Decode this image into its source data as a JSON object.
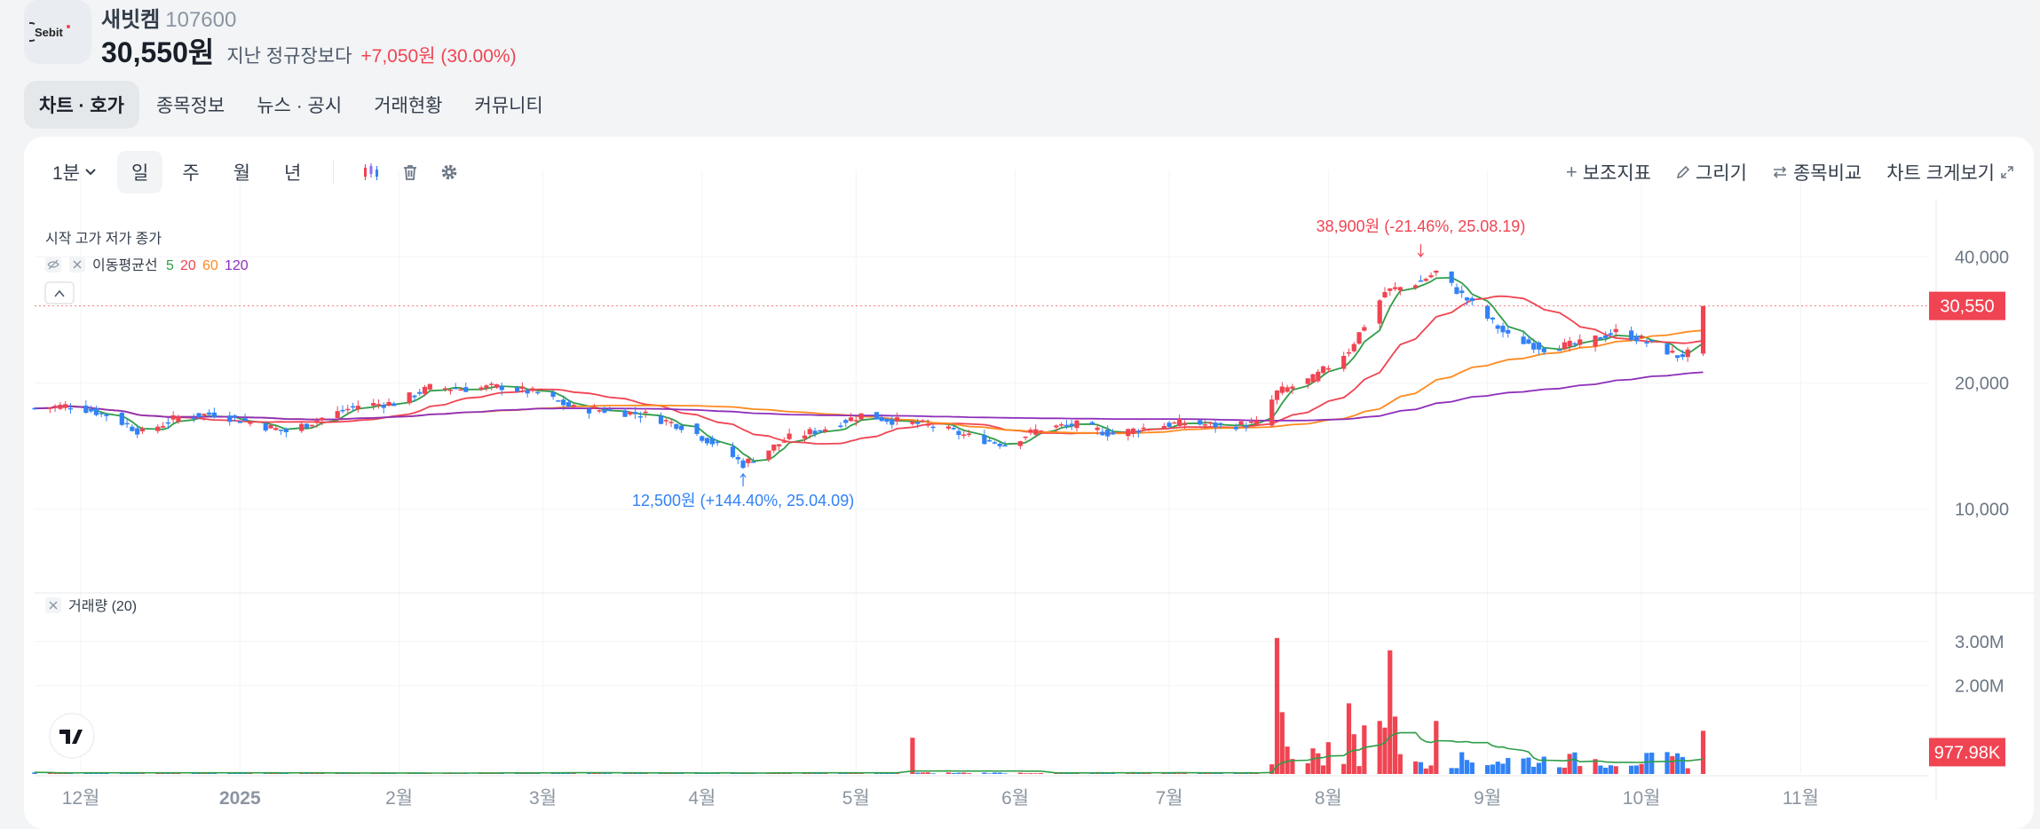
{
  "stock": {
    "logo_text": "Sebit",
    "name": "새빗켐",
    "code": "107600",
    "price": "30,550원",
    "compare_label": "지난 정규장보다",
    "change": "+7,050원 (30.00%)"
  },
  "tabs": [
    {
      "label": "차트 · 호가",
      "active": true
    },
    {
      "label": "종목정보",
      "active": false
    },
    {
      "label": "뉴스 · 공시",
      "active": false
    },
    {
      "label": "거래현황",
      "active": false
    },
    {
      "label": "커뮤니티",
      "active": false
    }
  ],
  "toolbar": {
    "interval": "1분",
    "periods": [
      {
        "label": "일",
        "active": true
      },
      {
        "label": "주",
        "active": false
      },
      {
        "label": "월",
        "active": false
      },
      {
        "label": "년",
        "active": false
      }
    ],
    "icons": [
      "candle-type-icon",
      "trash-icon",
      "settings-gear-icon"
    ],
    "right_buttons": [
      {
        "label": "보조지표",
        "icon": "plus-icon"
      },
      {
        "label": "그리기",
        "icon": "pencil-icon"
      },
      {
        "label": "종목비교",
        "icon": "swap-arrows-icon"
      },
      {
        "label": "차트 크게보기",
        "icon": "expand-icon"
      }
    ]
  },
  "legend": {
    "ohlc_label": "시작 고가 저가 종가",
    "ma_label": "이동평균선",
    "ma_periods": [
      {
        "label": "5",
        "color": "#2e9e48"
      },
      {
        "label": "20",
        "color": "#f04452"
      },
      {
        "label": "60",
        "color": "#ff8a1f"
      },
      {
        "label": "120",
        "color": "#8e2fba"
      }
    ],
    "volume_label": "거래량 (20)"
  },
  "colors": {
    "up": "#f04452",
    "down": "#3182f6",
    "ma5": "#2e9e48",
    "ma20": "#f04452",
    "ma60": "#ff8a1f",
    "ma120": "#8e2fba",
    "current_price_tag": "#f04452"
  },
  "chart_data": {
    "type": "candlestick",
    "price_axis": {
      "ticks": [
        "40,000",
        "20,000",
        "10,000"
      ],
      "tick_values": [
        40000,
        20000,
        10000
      ],
      "scale": "log",
      "range": [
        6500,
        48000
      ]
    },
    "volume_axis": {
      "ticks": [
        "3.00M",
        "2.00M"
      ],
      "tick_values": [
        3000000,
        2000000
      ],
      "range": [
        0,
        4000000
      ]
    },
    "x_labels": [
      {
        "label": "12월",
        "date": "2024-12-01",
        "bold": false
      },
      {
        "label": "2025",
        "date": "2025-01-01",
        "bold": true
      },
      {
        "label": "2월",
        "date": "2025-02-01",
        "bold": false
      },
      {
        "label": "3월",
        "date": "2025-03-01",
        "bold": false
      },
      {
        "label": "4월",
        "date": "2025-04-01",
        "bold": false
      },
      {
        "label": "5월",
        "date": "2025-05-01",
        "bold": false
      },
      {
        "label": "6월",
        "date": "2025-06-01",
        "bold": false
      },
      {
        "label": "7월",
        "date": "2025-07-01",
        "bold": false
      },
      {
        "label": "8월",
        "date": "2025-08-01",
        "bold": false
      },
      {
        "label": "9월",
        "date": "2025-09-01",
        "bold": false
      },
      {
        "label": "10월",
        "date": "2025-10-01",
        "bold": false
      },
      {
        "label": "11월",
        "date": "2025-11-01",
        "bold": false
      }
    ],
    "date_range": [
      "2024-11-22",
      "2025-11-26"
    ],
    "closes": [
      [
        "2024-11-22",
        17400
      ],
      [
        "2024-11-29",
        17700
      ],
      [
        "2024-12-06",
        16800
      ],
      [
        "2024-12-13",
        15200
      ],
      [
        "2024-12-20",
        16600
      ],
      [
        "2024-12-27",
        16900
      ],
      [
        "2025-01-03",
        16100
      ],
      [
        "2025-01-10",
        15300
      ],
      [
        "2025-01-17",
        16500
      ],
      [
        "2025-01-24",
        17700
      ],
      [
        "2025-01-31",
        17900
      ],
      [
        "2025-02-07",
        19500
      ],
      [
        "2025-02-14",
        19400
      ],
      [
        "2025-02-21",
        19600
      ],
      [
        "2025-02-28",
        18900
      ],
      [
        "2025-03-07",
        17400
      ],
      [
        "2025-03-14",
        17200
      ],
      [
        "2025-03-21",
        16800
      ],
      [
        "2025-03-28",
        15800
      ],
      [
        "2025-04-04",
        14200
      ],
      [
        "2025-04-09",
        12800
      ],
      [
        "2025-04-18",
        14800
      ],
      [
        "2025-04-25",
        15600
      ],
      [
        "2025-05-02",
        16800
      ],
      [
        "2025-05-09",
        16200
      ],
      [
        "2025-05-16",
        15800
      ],
      [
        "2025-05-23",
        14900
      ],
      [
        "2025-05-30",
        14300
      ],
      [
        "2025-06-06",
        15600
      ],
      [
        "2025-06-13",
        15900
      ],
      [
        "2025-06-20",
        15100
      ],
      [
        "2025-06-27",
        15700
      ],
      [
        "2025-07-04",
        16100
      ],
      [
        "2025-07-11",
        15800
      ],
      [
        "2025-07-18",
        16000
      ],
      [
        "2025-07-22",
        19000
      ],
      [
        "2025-07-29",
        20500
      ],
      [
        "2025-08-05",
        24000
      ],
      [
        "2025-08-12",
        33000
      ],
      [
        "2025-08-19",
        35000
      ],
      [
        "2025-08-22",
        36800
      ],
      [
        "2025-08-29",
        30800
      ],
      [
        "2025-09-05",
        25800
      ],
      [
        "2025-09-12",
        24200
      ],
      [
        "2025-09-19",
        24800
      ],
      [
        "2025-09-26",
        26500
      ],
      [
        "2025-10-01",
        25400
      ],
      [
        "2025-10-08",
        23200
      ],
      [
        "2025-10-10",
        23500
      ],
      [
        "2025-10-13",
        30550
      ]
    ],
    "annotations": [
      {
        "text": "38,900원 (-21.46%, 25.08.19)",
        "date": "2025-08-19",
        "price": 38900,
        "color": "#f04452",
        "kind": "high"
      },
      {
        "text": "12,500원 (+144.40%, 25.04.09)",
        "date": "2025-04-09",
        "price": 12500,
        "color": "#3182f6",
        "kind": "low"
      }
    ],
    "current_price": {
      "label": "30,550",
      "value": 30550
    },
    "current_volume": {
      "label": "977.98K",
      "value": 977980
    },
    "volume_spikes": [
      [
        "2025-05-12",
        820000
      ],
      [
        "2025-07-22",
        3080000
      ],
      [
        "2025-07-23",
        1400000
      ],
      [
        "2025-07-24",
        620000
      ],
      [
        "2025-07-29",
        580000
      ],
      [
        "2025-08-01",
        720000
      ],
      [
        "2025-08-05",
        1600000
      ],
      [
        "2025-08-06",
        900000
      ],
      [
        "2025-08-08",
        1100000
      ],
      [
        "2025-08-11",
        1200000
      ],
      [
        "2025-08-12",
        1050000
      ],
      [
        "2025-08-13",
        2800000
      ],
      [
        "2025-08-14",
        1300000
      ],
      [
        "2025-08-22",
        1200000
      ],
      [
        "2025-10-13",
        977980
      ]
    ]
  }
}
